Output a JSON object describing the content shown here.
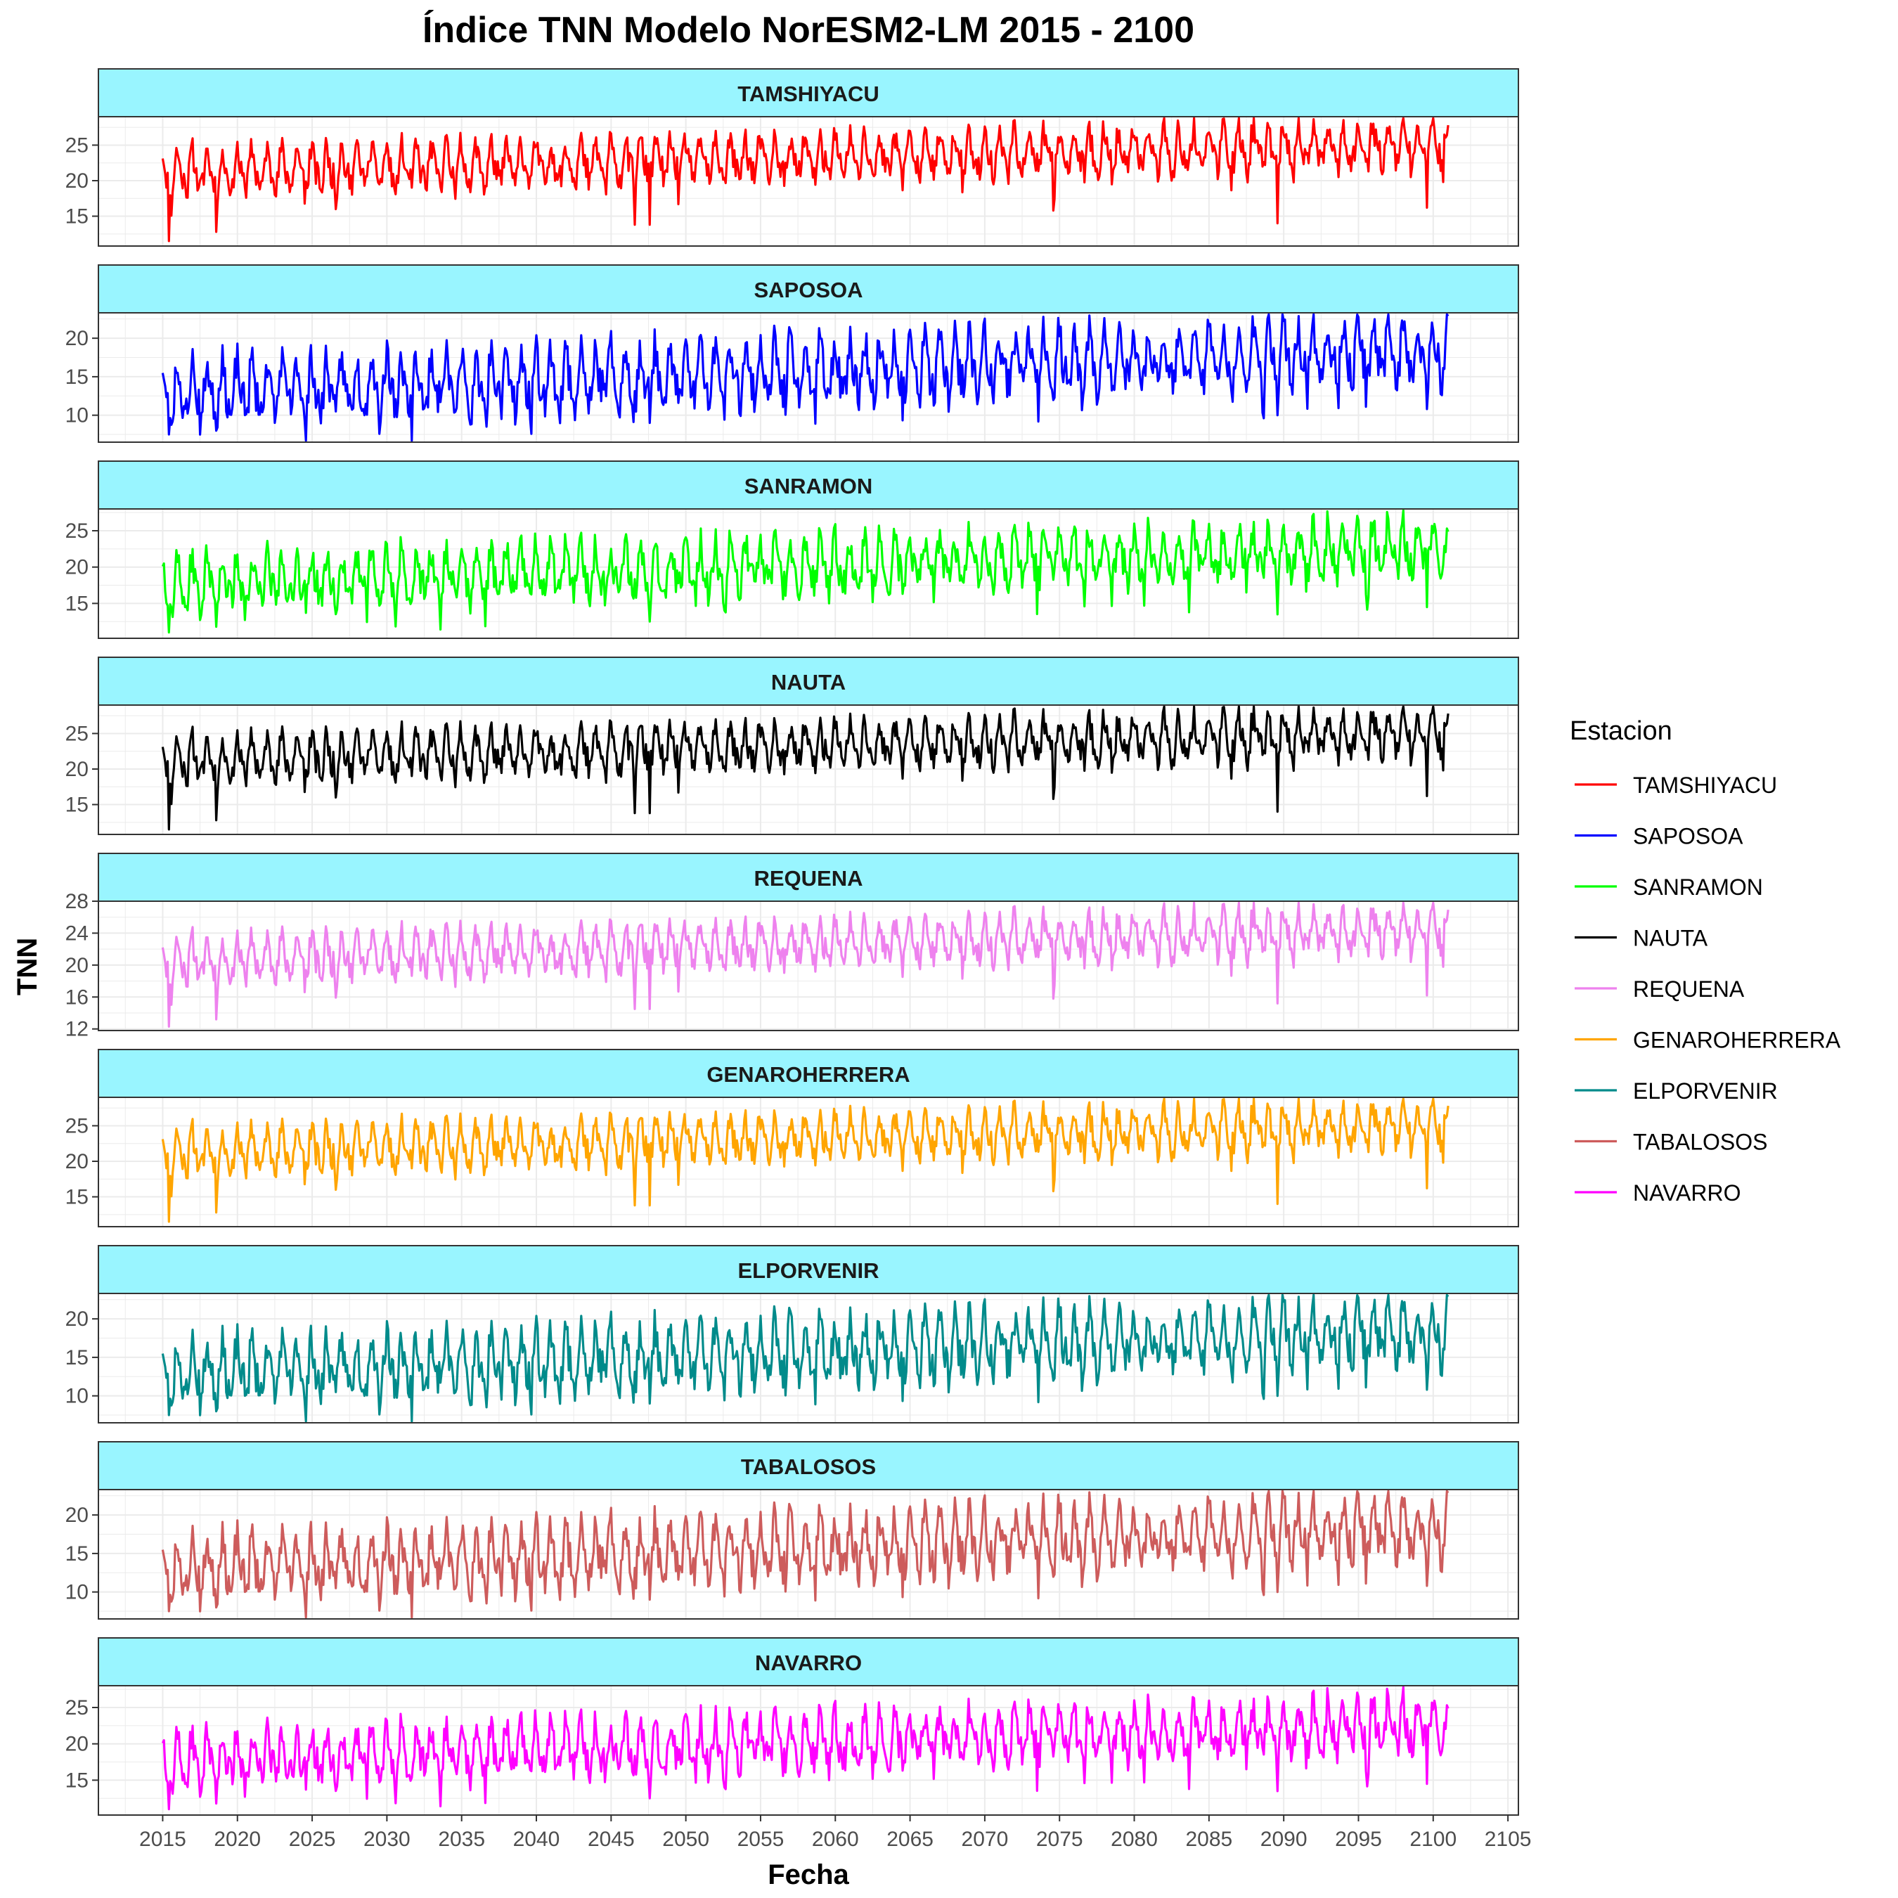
{
  "chart_data": {
    "type": "line",
    "title": "Índice TNN Modelo NorESM2-LM 2015 - 2100",
    "xlabel": "Fecha",
    "ylabel": "TNN",
    "xlim": [
      2015,
      2101
    ],
    "x_ticks": [
      2015,
      2020,
      2025,
      2030,
      2035,
      2040,
      2045,
      2050,
      2055,
      2060,
      2065,
      2070,
      2075,
      2080,
      2085,
      2090,
      2095,
      2100,
      2105
    ],
    "facet_strip_color": "#99F5FF",
    "legend": {
      "title": "Estacion",
      "placement": "right",
      "entries": [
        "TAMSHIYACU",
        "SAPOSOA",
        "SANRAMON",
        "NAUTA",
        "REQUENA",
        "GENAROHERRERA",
        "ELPORVENIR",
        "TABALOSOS",
        "NAVARRO"
      ]
    },
    "series": [
      {
        "name": "TAMSHIYACU",
        "color": "#FF0000",
        "ylim": [
          10.8,
          29.0
        ],
        "y_ticks": [
          15,
          20,
          25
        ],
        "mean_start": 21.2,
        "mean_end": 25.2,
        "amplitude": 5.6,
        "seed": 11,
        "dips": [
          [
            2015.4,
            11.5
          ],
          [
            2018.6,
            12.8
          ],
          [
            2046.6,
            13.8
          ],
          [
            2047.6,
            13.8
          ],
          [
            2074.6,
            15.8
          ],
          [
            2089.6,
            14.0
          ],
          [
            2099.6,
            16.2
          ]
        ],
        "peaks": [
          [
            2097.9,
            28.0
          ]
        ]
      },
      {
        "name": "SAPOSOA",
        "color": "#0000FF",
        "ylim": [
          6.5,
          23.3
        ],
        "y_ticks": [
          10,
          15,
          20
        ],
        "mean_start": 13.0,
        "mean_end": 18.5,
        "amplitude": 7.2,
        "seed": 23,
        "dips": [
          [
            2015.4,
            7.5
          ],
          [
            2018.6,
            8.0
          ],
          [
            2047.6,
            9.0
          ],
          [
            2089.6,
            10.0
          ],
          [
            2099.6,
            10.8
          ]
        ],
        "peaks": [
          [
            2097.9,
            22.3
          ]
        ]
      },
      {
        "name": "SANRAMON",
        "color": "#00FF00",
        "ylim": [
          10.2,
          28.0
        ],
        "y_ticks": [
          15,
          20,
          25
        ],
        "mean_start": 17.8,
        "mean_end": 22.6,
        "amplitude": 6.6,
        "seed": 37,
        "dips": [
          [
            2015.4,
            11.0
          ],
          [
            2018.6,
            11.8
          ],
          [
            2047.6,
            12.5
          ],
          [
            2089.6,
            13.5
          ],
          [
            2099.6,
            14.5
          ]
        ],
        "peaks": [
          [
            2093.9,
            26.0
          ]
        ]
      },
      {
        "name": "NAUTA",
        "color": "#000000",
        "ylim": [
          10.8,
          29.0
        ],
        "y_ticks": [
          15,
          20,
          25
        ],
        "mean_start": 21.2,
        "mean_end": 25.2,
        "amplitude": 5.6,
        "seed": 11,
        "dips": [
          [
            2015.4,
            11.5
          ],
          [
            2018.6,
            12.8
          ],
          [
            2046.6,
            13.8
          ],
          [
            2047.6,
            13.8
          ],
          [
            2074.6,
            15.8
          ],
          [
            2089.6,
            14.0
          ],
          [
            2099.6,
            16.2
          ]
        ],
        "peaks": [
          [
            2097.9,
            28.0
          ]
        ]
      },
      {
        "name": "REQUENA",
        "color": "#EE82EE",
        "ylim": [
          11.8,
          28.0
        ],
        "y_ticks": [
          12,
          16,
          20,
          24,
          28
        ],
        "mean_start": 20.5,
        "mean_end": 24.6,
        "amplitude": 5.0,
        "seed": 11,
        "dips": [
          [
            2015.4,
            12.3
          ],
          [
            2018.6,
            13.2
          ],
          [
            2046.6,
            14.5
          ],
          [
            2047.6,
            14.5
          ],
          [
            2074.6,
            15.8
          ],
          [
            2089.6,
            15.2
          ],
          [
            2099.6,
            16.2
          ]
        ],
        "peaks": [
          [
            2093.9,
            27.3
          ]
        ]
      },
      {
        "name": "GENAROHERRERA",
        "color": "#FFA500",
        "ylim": [
          10.8,
          29.0
        ],
        "y_ticks": [
          15,
          20,
          25
        ],
        "mean_start": 21.2,
        "mean_end": 25.2,
        "amplitude": 5.6,
        "seed": 11,
        "dips": [
          [
            2015.4,
            11.5
          ],
          [
            2018.6,
            12.8
          ],
          [
            2046.6,
            13.8
          ],
          [
            2047.6,
            13.8
          ],
          [
            2074.6,
            15.8
          ],
          [
            2089.6,
            14.0
          ],
          [
            2099.6,
            16.2
          ]
        ],
        "peaks": [
          [
            2097.9,
            28.0
          ]
        ]
      },
      {
        "name": "ELPORVENIR",
        "color": "#008B8B",
        "ylim": [
          6.5,
          23.3
        ],
        "y_ticks": [
          10,
          15,
          20
        ],
        "mean_start": 13.0,
        "mean_end": 18.5,
        "amplitude": 7.2,
        "seed": 23,
        "dips": [
          [
            2015.4,
            7.5
          ],
          [
            2018.6,
            8.0
          ],
          [
            2047.6,
            9.0
          ],
          [
            2089.6,
            10.0
          ],
          [
            2099.6,
            10.8
          ]
        ],
        "peaks": [
          [
            2097.9,
            22.3
          ]
        ]
      },
      {
        "name": "TABALOSOS",
        "color": "#CD5C5C",
        "ylim": [
          6.5,
          23.3
        ],
        "y_ticks": [
          10,
          15,
          20
        ],
        "mean_start": 13.0,
        "mean_end": 18.5,
        "amplitude": 7.2,
        "seed": 23,
        "dips": [
          [
            2015.4,
            7.5
          ],
          [
            2018.6,
            8.0
          ],
          [
            2047.6,
            9.0
          ],
          [
            2089.6,
            10.0
          ],
          [
            2099.6,
            10.8
          ]
        ],
        "peaks": [
          [
            2097.9,
            22.3
          ]
        ]
      },
      {
        "name": "NAVARRO",
        "color": "#FF00FF",
        "ylim": [
          10.2,
          28.0
        ],
        "y_ticks": [
          15,
          20,
          25
        ],
        "mean_start": 17.8,
        "mean_end": 22.6,
        "amplitude": 6.6,
        "seed": 37,
        "dips": [
          [
            2015.4,
            11.0
          ],
          [
            2018.6,
            11.8
          ],
          [
            2047.6,
            12.5
          ],
          [
            2089.6,
            13.5
          ],
          [
            2099.6,
            14.5
          ]
        ],
        "peaks": [
          [
            2093.9,
            26.0
          ]
        ]
      }
    ]
  }
}
